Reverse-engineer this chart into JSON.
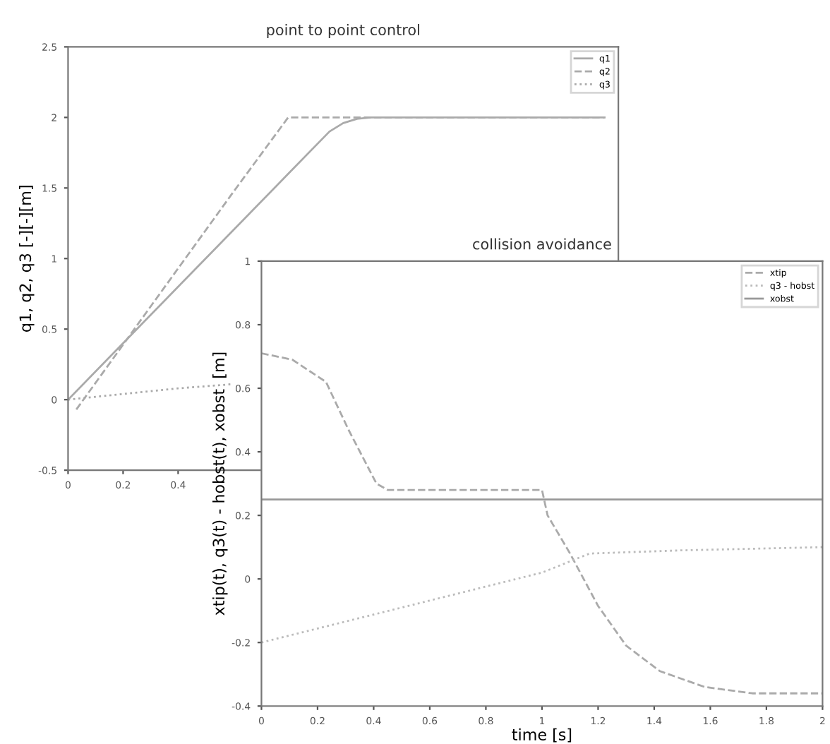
{
  "chart_data": [
    {
      "type": "line",
      "title": "point to point control",
      "ylabel": "q1, q2, q3 [-][-][m]",
      "xlim": [
        0,
        2
      ],
      "xticks": [
        0,
        0.2,
        0.4
      ],
      "ylim": [
        -0.5,
        2.5
      ],
      "yticks": [
        -0.5,
        0,
        0.5,
        1,
        1.5,
        2,
        2.5
      ],
      "legend": "top right",
      "grid": false,
      "series": [
        {
          "name": "q1",
          "color": "#aaaaaa",
          "line_style": "solid",
          "x": [
            0,
            0.2,
            0.49,
            0.8,
            0.95,
            1.0,
            1.05,
            1.1,
            1.95
          ],
          "values": [
            0,
            0.4,
            0.98,
            1.6,
            1.9,
            1.96,
            1.99,
            2,
            2
          ]
        },
        {
          "name": "q2",
          "color": "#aaaaaa",
          "line_style": "dashed",
          "x": [
            0.03,
            0.3,
            0.6,
            0.8,
            1.95
          ],
          "values": [
            -0.07,
            0.66,
            1.47,
            2,
            2
          ]
        },
        {
          "name": "q3",
          "color": "#aaaaaa",
          "line_style": "dotted",
          "x": [
            0,
            0.2,
            0.4,
            0.6
          ],
          "values": [
            0,
            0.04,
            0.08,
            0.11
          ]
        }
      ]
    },
    {
      "type": "line",
      "title": "collision avoidance",
      "xlabel": "time [s]",
      "ylabel": "xtip(t), q3(t) - hobst(t), xobst  [m]",
      "xlim": [
        0,
        2
      ],
      "xticks": [
        0,
        0.2,
        0.4,
        0.6,
        0.8,
        1,
        1.2,
        1.4,
        1.6,
        1.8,
        2
      ],
      "ylim": [
        -0.4,
        1
      ],
      "yticks": [
        -0.4,
        -0.2,
        0,
        0.2,
        0.4,
        0.6,
        0.8,
        1
      ],
      "legend": "top right",
      "grid": false,
      "series": [
        {
          "name": "xtip",
          "color": "#aaaaaa",
          "line_style": "dashed",
          "x": [
            0,
            0.11,
            0.23,
            0.31,
            0.41,
            0.45,
            1.0,
            1.02,
            1.1,
            1.2,
            1.3,
            1.42,
            1.58,
            1.75,
            2.0
          ],
          "values": [
            0.71,
            0.69,
            0.62,
            0.47,
            0.3,
            0.28,
            0.28,
            0.2,
            0.08,
            -0.085,
            -0.21,
            -0.29,
            -0.34,
            -0.36,
            -0.36
          ]
        },
        {
          "name": "q3 - hobst",
          "color": "#bbbbbb",
          "line_style": "dotted",
          "x": [
            0,
            1.0,
            1.17,
            1.5,
            2.0
          ],
          "values": [
            -0.2,
            0.02,
            0.08,
            0.09,
            0.1
          ]
        },
        {
          "name": "xobst",
          "color": "#999999",
          "line_style": "solid",
          "x": [
            0,
            2.0
          ],
          "values": [
            0.25,
            0.25
          ]
        }
      ]
    }
  ]
}
